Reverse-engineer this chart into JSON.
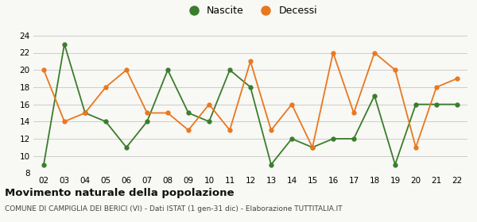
{
  "years": [
    "02",
    "03",
    "04",
    "05",
    "06",
    "07",
    "08",
    "09",
    "10",
    "11",
    "12",
    "13",
    "14",
    "15",
    "16",
    "17",
    "18",
    "19",
    "20",
    "21",
    "22"
  ],
  "nascite": [
    9,
    23,
    15,
    14,
    11,
    14,
    20,
    15,
    14,
    20,
    18,
    9,
    12,
    11,
    12,
    12,
    17,
    9,
    16,
    16,
    16
  ],
  "decessi": [
    20,
    14,
    15,
    18,
    20,
    15,
    15,
    13,
    16,
    13,
    21,
    13,
    16,
    11,
    22,
    15,
    22,
    20,
    11,
    18,
    19
  ],
  "nascite_color": "#3a7d2c",
  "decessi_color": "#e87820",
  "ylim": [
    8,
    24
  ],
  "yticks": [
    8,
    10,
    12,
    14,
    16,
    18,
    20,
    22,
    24
  ],
  "title": "Movimento naturale della popolazione",
  "subtitle": "COMUNE DI CAMPIGLIA DEI BERICI (VI) - Dati ISTAT (1 gen-31 dic) - Elaborazione TUTTITALIA.IT",
  "legend_nascite": "Nascite",
  "legend_decessi": "Decessi",
  "bg_color": "#f8f8f4",
  "grid_color": "#cccccc"
}
